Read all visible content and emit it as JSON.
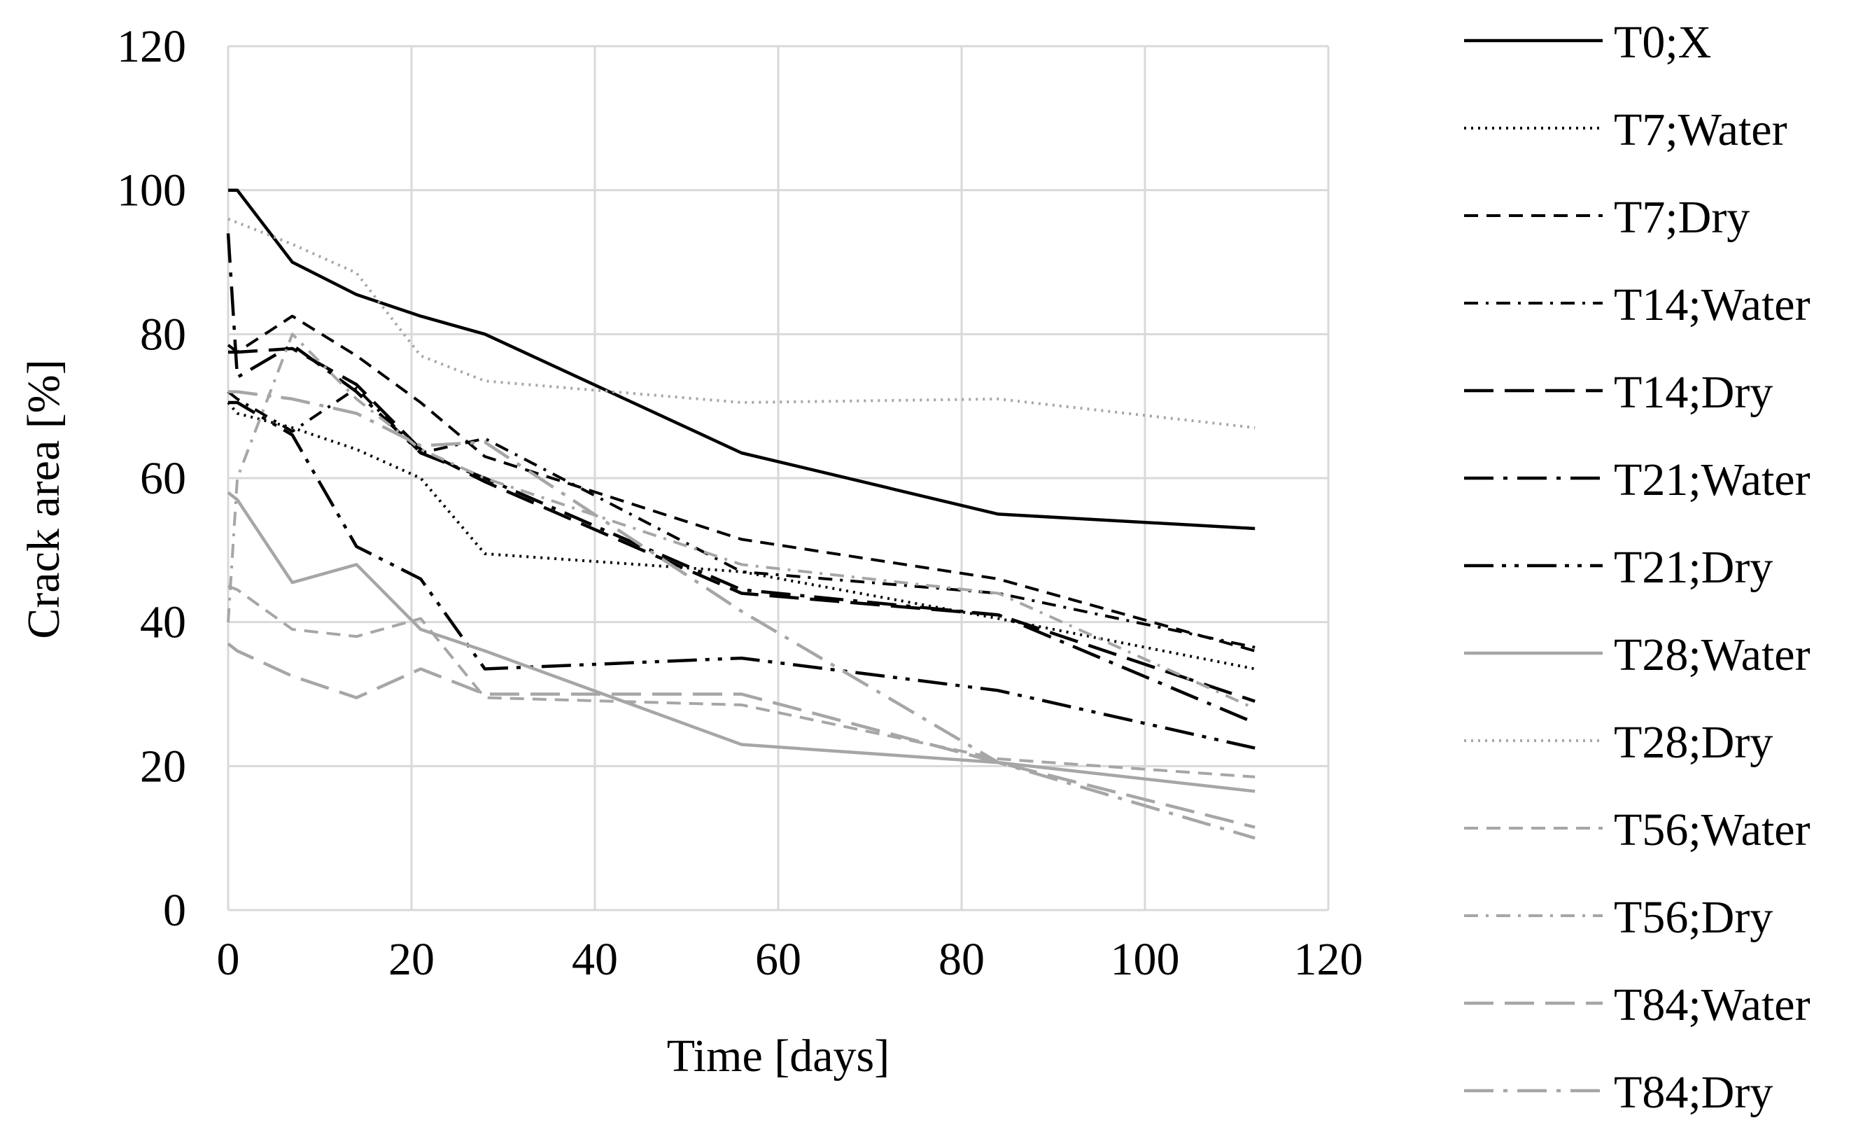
{
  "chart_data": {
    "type": "line",
    "title": "",
    "xlabel": "Time [days]",
    "ylabel": "Crack area [%]",
    "xlim": [
      0,
      120
    ],
    "ylim": [
      0,
      120
    ],
    "xticks": [
      0,
      20,
      40,
      60,
      80,
      100,
      120
    ],
    "yticks": [
      0,
      20,
      40,
      60,
      80,
      100,
      120
    ],
    "grid": true,
    "legend_position": "right",
    "series": [
      {
        "name": "T0;X",
        "color": "#000000",
        "dash": "solid",
        "width": 4.5,
        "x": [
          0,
          1,
          7,
          14,
          21,
          28,
          56,
          84,
          112
        ],
        "y": [
          100,
          100,
          90,
          85.5,
          82.5,
          80,
          63.5,
          55,
          53
        ]
      },
      {
        "name": "T7;Water",
        "color": "#000000",
        "dash": "dotted",
        "width": 4,
        "x": [
          0,
          1,
          7,
          14,
          21,
          28,
          56,
          84,
          112
        ],
        "y": [
          70.5,
          69,
          67,
          64,
          60,
          49.5,
          47,
          40.5,
          33.5
        ]
      },
      {
        "name": "T7;Dry",
        "color": "#000000",
        "dash": "dash",
        "width": 4,
        "x": [
          0,
          1,
          7,
          14,
          21,
          28,
          56,
          84,
          112
        ],
        "y": [
          78.5,
          77.5,
          82.5,
          77,
          70.5,
          63,
          51.5,
          46,
          36
        ]
      },
      {
        "name": "T14;Water",
        "color": "#000000",
        "dash": "dashdot",
        "width": 4,
        "x": [
          0,
          1,
          7,
          14,
          21,
          28,
          56,
          84,
          112
        ],
        "y": [
          72,
          71,
          66.5,
          72.5,
          63.5,
          65.5,
          47,
          44,
          36.5
        ]
      },
      {
        "name": "T14;Dry",
        "color": "#000000",
        "dash": "longdash",
        "width": 4.5,
        "x": [
          0,
          1,
          7,
          14,
          21,
          28,
          56,
          84,
          112
        ],
        "y": [
          77.5,
          77.5,
          78,
          73,
          64,
          59.5,
          44,
          41,
          29
        ]
      },
      {
        "name": "T21;Water",
        "color": "#000000",
        "dash": "longdashdot",
        "width": 4.5,
        "x": [
          0,
          1,
          7,
          14,
          21,
          28,
          56,
          84,
          112
        ],
        "y": [
          94,
          74,
          78.5,
          72,
          63.5,
          60,
          44.5,
          41,
          26
        ]
      },
      {
        "name": "T21;Dry",
        "color": "#000000",
        "dash": "longdashdotdot",
        "width": 4.5,
        "x": [
          0,
          1,
          7,
          14,
          21,
          28,
          56,
          84,
          112
        ],
        "y": [
          70.5,
          70.5,
          66,
          50.5,
          46,
          33.5,
          35,
          30.5,
          22.5
        ]
      },
      {
        "name": "T28;Water",
        "color": "#a6a6a6",
        "dash": "solid",
        "width": 4.5,
        "x": [
          0,
          1,
          7,
          14,
          21,
          28,
          56,
          84,
          112
        ],
        "y": [
          58,
          57,
          45.5,
          48,
          39,
          36,
          23,
          20.5,
          16.5
        ]
      },
      {
        "name": "T28;Dry",
        "color": "#a6a6a6",
        "dash": "dotted",
        "width": 4,
        "x": [
          0,
          1,
          7,
          14,
          21,
          28,
          56,
          84,
          112
        ],
        "y": [
          96,
          95.5,
          92.5,
          88.5,
          77,
          73.5,
          70.5,
          71,
          67
        ]
      },
      {
        "name": "T56;Water",
        "color": "#a6a6a6",
        "dash": "dash",
        "width": 4,
        "x": [
          0,
          1,
          7,
          14,
          21,
          28,
          56,
          84,
          112
        ],
        "y": [
          45,
          44.5,
          39,
          38,
          40.5,
          29.5,
          28.5,
          21,
          18.5
        ]
      },
      {
        "name": "T56;Dry",
        "color": "#a6a6a6",
        "dash": "dashdot",
        "width": 4,
        "x": [
          0,
          1,
          7,
          14,
          21,
          28,
          56,
          84,
          112
        ],
        "y": [
          40,
          60,
          80,
          71,
          64,
          60,
          48,
          44,
          28
        ]
      },
      {
        "name": "T84;Water",
        "color": "#a6a6a6",
        "dash": "longdash",
        "width": 4.5,
        "x": [
          0,
          1,
          7,
          14,
          21,
          28,
          56,
          84,
          112
        ],
        "y": [
          37,
          36,
          32.5,
          29.5,
          33.5,
          30,
          30,
          20.5,
          11.5
        ]
      },
      {
        "name": "T84;Dry",
        "color": "#a6a6a6",
        "dash": "longdashdot",
        "width": 4.5,
        "x": [
          0,
          1,
          7,
          14,
          21,
          28,
          56,
          84,
          112
        ],
        "y": [
          72,
          72,
          71,
          69,
          64.5,
          65,
          41.5,
          20.5,
          10
        ]
      }
    ]
  }
}
